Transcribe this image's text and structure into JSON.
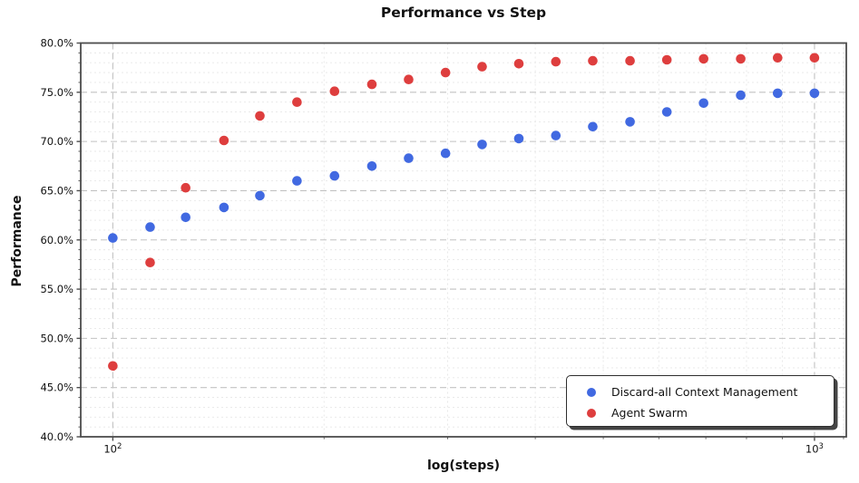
{
  "chart_data": {
    "type": "scatter",
    "title": "Performance vs Step",
    "xlabel": "log(steps)",
    "ylabel": "Performance",
    "x_scale": "log",
    "xlim": [
      90,
      1110
    ],
    "ylim": [
      40,
      80
    ],
    "y_tick_step": 5,
    "y_tick_suffix": "%",
    "x_ticks": [
      100,
      1000
    ],
    "x_tick_labels": [
      {
        "base": "10",
        "exp": "2"
      },
      {
        "base": "10",
        "exp": "3"
      }
    ],
    "grid": true,
    "legend_position": "lower-right",
    "x": [
      100,
      113,
      127,
      144,
      162,
      183,
      207,
      234,
      264,
      298,
      336,
      379,
      428,
      483,
      546,
      616,
      695,
      785,
      886,
      1000
    ],
    "series": [
      {
        "name": "Discard-all Context Management",
        "color": "#4169E1",
        "values": [
          60.2,
          61.3,
          62.3,
          63.3,
          64.5,
          66.0,
          66.5,
          67.5,
          68.3,
          68.8,
          69.7,
          70.3,
          70.6,
          71.5,
          72.0,
          73.0,
          73.9,
          74.7,
          74.9,
          74.9
        ]
      },
      {
        "name": "Agent Swarm",
        "color": "#DE3E3E",
        "values": [
          47.2,
          57.7,
          65.3,
          70.1,
          72.6,
          74.0,
          75.1,
          75.8,
          76.3,
          77.0,
          77.6,
          77.9,
          78.1,
          78.2,
          78.2,
          78.3,
          78.4,
          78.4,
          78.5,
          78.5
        ]
      }
    ]
  }
}
